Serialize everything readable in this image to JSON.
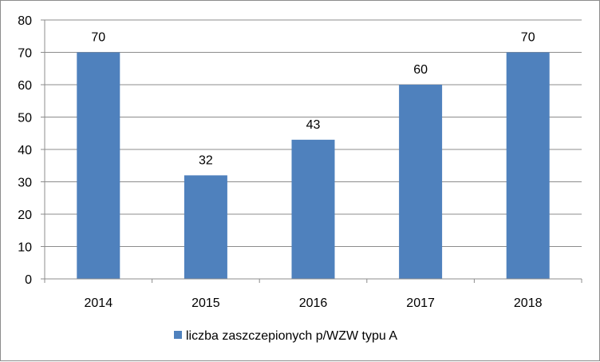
{
  "chart_data": {
    "type": "bar",
    "categories": [
      "2014",
      "2015",
      "2016",
      "2017",
      "2018"
    ],
    "series": [
      {
        "name": "liczba zaszczepionych p/WZW typu A",
        "values": [
          70,
          32,
          43,
          60,
          70
        ],
        "color": "#4f81bd"
      }
    ],
    "data_labels": [
      "70",
      "32",
      "43",
      "60",
      "70"
    ],
    "y_ticks": [
      "0",
      "10",
      "20",
      "30",
      "40",
      "50",
      "60",
      "70",
      "80"
    ],
    "ylim": [
      0,
      80
    ],
    "grid": true,
    "legend_position": "bottom",
    "title": "",
    "xlabel": "",
    "ylabel": ""
  }
}
